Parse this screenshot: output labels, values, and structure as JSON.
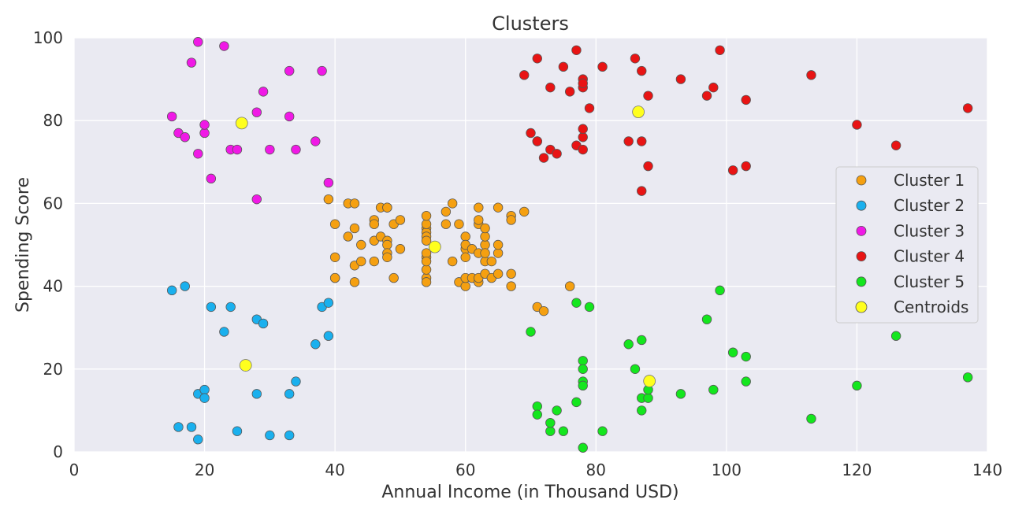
{
  "chart_data": {
    "type": "scatter",
    "title": "Clusters",
    "xlabel": "Annual Income (in Thousand USD)",
    "ylabel": "Spending Score",
    "xlim": [
      0,
      140
    ],
    "ylim": [
      0,
      100
    ],
    "xticks": [
      0,
      20,
      40,
      60,
      80,
      100,
      120,
      140
    ],
    "yticks": [
      0,
      20,
      40,
      60,
      80,
      100
    ],
    "grid": true,
    "legend_position": "right",
    "background": "#eaeaf2",
    "series": [
      {
        "name": "Cluster 1",
        "color": "#f5a011",
        "points": [
          [
            39,
            61
          ],
          [
            40,
            55
          ],
          [
            40,
            47
          ],
          [
            40,
            42
          ],
          [
            40,
            42
          ],
          [
            42,
            52
          ],
          [
            42,
            60
          ],
          [
            43,
            54
          ],
          [
            43,
            60
          ],
          [
            43,
            45
          ],
          [
            43,
            41
          ],
          [
            44,
            50
          ],
          [
            44,
            46
          ],
          [
            46,
            51
          ],
          [
            46,
            46
          ],
          [
            46,
            56
          ],
          [
            46,
            55
          ],
          [
            47,
            52
          ],
          [
            47,
            59
          ],
          [
            48,
            51
          ],
          [
            48,
            59
          ],
          [
            48,
            50
          ],
          [
            48,
            48
          ],
          [
            48,
            59
          ],
          [
            48,
            47
          ],
          [
            49,
            55
          ],
          [
            49,
            42
          ],
          [
            50,
            49
          ],
          [
            50,
            56
          ],
          [
            54,
            47
          ],
          [
            54,
            54
          ],
          [
            54,
            53
          ],
          [
            54,
            48
          ],
          [
            54,
            52
          ],
          [
            54,
            42
          ],
          [
            54,
            51
          ],
          [
            54,
            55
          ],
          [
            54,
            41
          ],
          [
            54,
            44
          ],
          [
            54,
            57
          ],
          [
            54,
            46
          ],
          [
            57,
            58
          ],
          [
            57,
            55
          ],
          [
            58,
            60
          ],
          [
            58,
            46
          ],
          [
            59,
            55
          ],
          [
            59,
            41
          ],
          [
            60,
            49
          ],
          [
            60,
            40
          ],
          [
            60,
            42
          ],
          [
            60,
            52
          ],
          [
            60,
            47
          ],
          [
            60,
            50
          ],
          [
            61,
            42
          ],
          [
            61,
            49
          ],
          [
            62,
            41
          ],
          [
            62,
            48
          ],
          [
            62,
            59
          ],
          [
            62,
            55
          ],
          [
            62,
            56
          ],
          [
            62,
            42
          ],
          [
            63,
            50
          ],
          [
            63,
            46
          ],
          [
            63,
            43
          ],
          [
            63,
            48
          ],
          [
            63,
            52
          ],
          [
            63,
            54
          ],
          [
            64,
            42
          ],
          [
            64,
            46
          ],
          [
            65,
            48
          ],
          [
            65,
            50
          ],
          [
            65,
            43
          ],
          [
            65,
            59
          ],
          [
            67,
            43
          ],
          [
            67,
            57
          ],
          [
            67,
            56
          ],
          [
            67,
            40
          ],
          [
            69,
            58
          ],
          [
            71,
            35
          ],
          [
            72,
            34
          ],
          [
            76,
            40
          ]
        ]
      },
      {
        "name": "Cluster 2",
        "color": "#1ab0ee",
        "points": [
          [
            15,
            39
          ],
          [
            16,
            6
          ],
          [
            17,
            40
          ],
          [
            18,
            6
          ],
          [
            19,
            3
          ],
          [
            19,
            14
          ],
          [
            20,
            15
          ],
          [
            20,
            13
          ],
          [
            21,
            35
          ],
          [
            23,
            29
          ],
          [
            24,
            35
          ],
          [
            25,
            5
          ],
          [
            28,
            14
          ],
          [
            28,
            32
          ],
          [
            29,
            31
          ],
          [
            30,
            4
          ],
          [
            33,
            4
          ],
          [
            33,
            14
          ],
          [
            34,
            17
          ],
          [
            37,
            26
          ],
          [
            38,
            35
          ],
          [
            39,
            36
          ],
          [
            39,
            28
          ]
        ]
      },
      {
        "name": "Cluster 3",
        "color": "#f019e6",
        "points": [
          [
            15,
            81
          ],
          [
            16,
            77
          ],
          [
            17,
            76
          ],
          [
            18,
            94
          ],
          [
            19,
            72
          ],
          [
            19,
            99
          ],
          [
            20,
            77
          ],
          [
            20,
            79
          ],
          [
            21,
            66
          ],
          [
            23,
            98
          ],
          [
            24,
            73
          ],
          [
            25,
            73
          ],
          [
            28,
            82
          ],
          [
            28,
            61
          ],
          [
            29,
            87
          ],
          [
            30,
            73
          ],
          [
            33,
            92
          ],
          [
            33,
            81
          ],
          [
            34,
            73
          ],
          [
            37,
            75
          ],
          [
            38,
            92
          ],
          [
            39,
            65
          ]
        ]
      },
      {
        "name": "Cluster 4",
        "color": "#e81414",
        "points": [
          [
            69,
            91
          ],
          [
            70,
            77
          ],
          [
            71,
            95
          ],
          [
            71,
            75
          ],
          [
            71,
            75
          ],
          [
            72,
            71
          ],
          [
            73,
            88
          ],
          [
            73,
            73
          ],
          [
            74,
            72
          ],
          [
            75,
            93
          ],
          [
            76,
            87
          ],
          [
            77,
            97
          ],
          [
            77,
            74
          ],
          [
            78,
            90
          ],
          [
            78,
            88
          ],
          [
            78,
            76
          ],
          [
            78,
            89
          ],
          [
            78,
            78
          ],
          [
            78,
            73
          ],
          [
            79,
            83
          ],
          [
            81,
            93
          ],
          [
            85,
            75
          ],
          [
            86,
            95
          ],
          [
            87,
            63
          ],
          [
            87,
            75
          ],
          [
            87,
            92
          ],
          [
            88,
            86
          ],
          [
            88,
            69
          ],
          [
            93,
            90
          ],
          [
            97,
            86
          ],
          [
            98,
            88
          ],
          [
            99,
            97
          ],
          [
            101,
            68
          ],
          [
            103,
            85
          ],
          [
            103,
            69
          ],
          [
            113,
            91
          ],
          [
            120,
            79
          ],
          [
            126,
            74
          ],
          [
            137,
            83
          ]
        ]
      },
      {
        "name": "Cluster 5",
        "color": "#14e61e",
        "points": [
          [
            70,
            29
          ],
          [
            71,
            11
          ],
          [
            71,
            9
          ],
          [
            73,
            5
          ],
          [
            73,
            7
          ],
          [
            74,
            10
          ],
          [
            75,
            5
          ],
          [
            77,
            12
          ],
          [
            77,
            36
          ],
          [
            78,
            22
          ],
          [
            78,
            17
          ],
          [
            78,
            20
          ],
          [
            78,
            16
          ],
          [
            78,
            1
          ],
          [
            79,
            35
          ],
          [
            81,
            5
          ],
          [
            85,
            26
          ],
          [
            86,
            20
          ],
          [
            87,
            27
          ],
          [
            87,
            13
          ],
          [
            87,
            10
          ],
          [
            88,
            13
          ],
          [
            88,
            15
          ],
          [
            93,
            14
          ],
          [
            97,
            32
          ],
          [
            98,
            15
          ],
          [
            99,
            39
          ],
          [
            101,
            24
          ],
          [
            103,
            17
          ],
          [
            103,
            23
          ],
          [
            113,
            8
          ],
          [
            120,
            16
          ],
          [
            126,
            28
          ],
          [
            137,
            18
          ]
        ]
      },
      {
        "name": "Centroids",
        "color": "#ffff1e",
        "points": [
          [
            55.3,
            49.5
          ],
          [
            86.5,
            82.1
          ],
          [
            25.7,
            79.4
          ],
          [
            26.3,
            20.9
          ],
          [
            88.2,
            17.1
          ]
        ]
      }
    ]
  }
}
